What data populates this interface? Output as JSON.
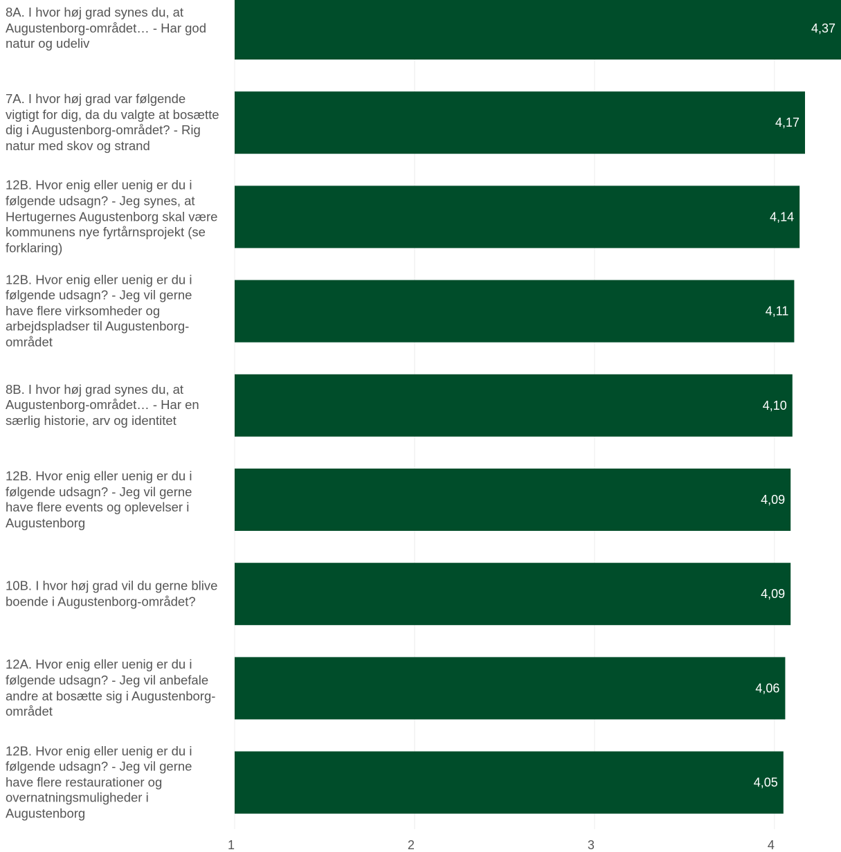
{
  "chart_data": {
    "type": "bar",
    "orientation": "horizontal",
    "title": "",
    "xlabel": "",
    "ylabel": "",
    "xlim": [
      1,
      4.37
    ],
    "xticks": [
      1,
      2,
      3,
      4
    ],
    "grid": true,
    "bar_color": "#004d2a",
    "categories": [
      "8A. I hvor høj grad synes du, at Augustenborg-området… - Har god natur og udeliv",
      "7A. I hvor høj grad var følgende vigtigt for dig, da du valgte at bosætte dig i Augustenborg-området? - Rig natur med skov og strand",
      "12B. Hvor enig eller uenig er du i følgende udsagn? - Jeg synes, at Hertugernes Augustenborg skal være kommunens nye fyrtårnsprojekt (se forklaring)",
      "12B. Hvor enig eller uenig er du i følgende udsagn? - Jeg vil gerne have flere virksomheder og arbejdspladser til Augustenborg-området",
      "8B. I hvor høj grad synes du, at Augustenborg-området… - Har en særlig historie, arv og identitet",
      "12B. Hvor enig eller uenig er du i følgende udsagn? - Jeg vil gerne have flere events og oplevelser i Augustenborg",
      "10B. I hvor høj grad vil du gerne blive boende i Augustenborg-området?",
      "12A. Hvor enig eller uenig er du i følgende udsagn? - Jeg vil anbefale andre at bosætte sig i Augustenborg-området",
      "12B. Hvor enig eller uenig er du i følgende udsagn? - Jeg vil gerne have flere restaurationer og overnatningsmuligheder i Augustenborg"
    ],
    "values": [
      4.37,
      4.17,
      4.14,
      4.11,
      4.1,
      4.09,
      4.09,
      4.06,
      4.05
    ],
    "value_labels": [
      "4,37",
      "4,17",
      "4,14",
      "4,11",
      "4,10",
      "4,09",
      "4,09",
      "4,06",
      "4,05"
    ]
  }
}
